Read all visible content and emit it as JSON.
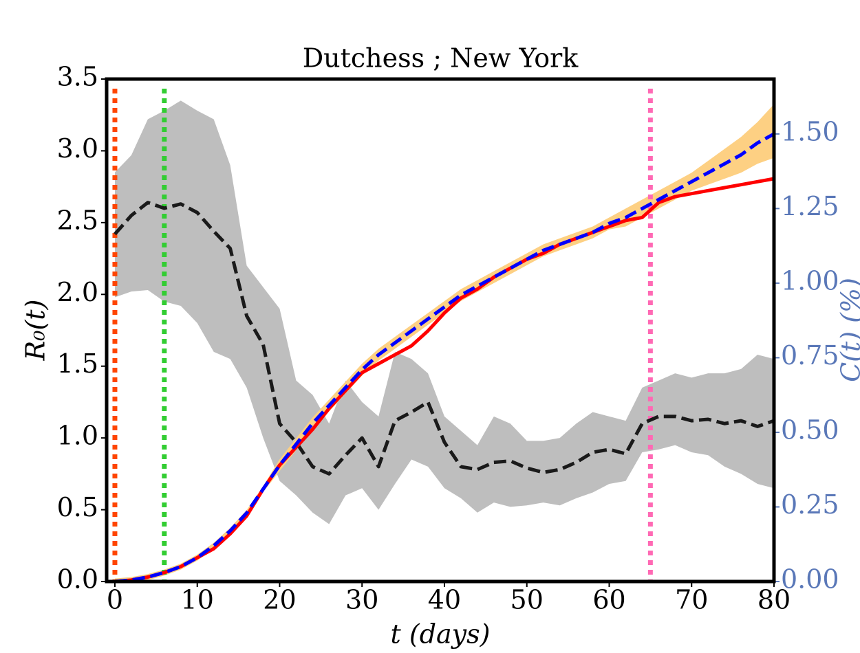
{
  "chart_data": {
    "type": "line",
    "title": "Dutchess ; New York",
    "xlabel": "t (days)",
    "ylabel": "R₀(t)",
    "y2label": "C(t) (%)",
    "y2color": "#5a78b8",
    "xlim": [
      -1,
      80
    ],
    "xticks": [
      0,
      10,
      20,
      30,
      40,
      50,
      60,
      70,
      80
    ],
    "ylim": [
      0,
      3.5
    ],
    "yticks": [
      {
        "value": 0,
        "label": "0.0"
      },
      0.5,
      {
        "value": 1,
        "label": "1.0"
      },
      1.5,
      {
        "value": 2,
        "label": "2.0"
      },
      2.5,
      {
        "value": 3,
        "label": "3.0"
      },
      3.5
    ],
    "y2lim": [
      0,
      1.684
    ],
    "y2ticks": [
      {
        "value": 0,
        "label": "0.00"
      },
      0.25,
      {
        "value": 0.5,
        "label": "0.50"
      },
      0.75,
      {
        "value": 1,
        "label": "1.00"
      },
      1.25,
      {
        "value": 1.5,
        "label": "1.50"
      }
    ],
    "x": [
      0,
      2,
      4,
      6,
      8,
      10,
      12,
      14,
      16,
      18,
      20,
      22,
      24,
      26,
      28,
      30,
      32,
      34,
      36,
      38,
      40,
      42,
      44,
      46,
      48,
      50,
      52,
      54,
      56,
      58,
      60,
      62,
      64,
      66,
      68,
      70,
      72,
      74,
      76,
      78,
      80
    ],
    "bands": [
      {
        "color": "#bebebe",
        "lower": [
          1.98,
          2.02,
          2.03,
          1.95,
          1.92,
          1.8,
          1.6,
          1.55,
          1.35,
          1.0,
          0.7,
          0.6,
          0.48,
          0.4,
          0.6,
          0.65,
          0.5,
          0.68,
          0.85,
          0.8,
          0.65,
          0.58,
          0.48,
          0.55,
          0.52,
          0.53,
          0.55,
          0.53,
          0.58,
          0.62,
          0.68,
          0.7,
          0.9,
          0.92,
          0.95,
          0.9,
          0.88,
          0.8,
          0.75,
          0.68,
          0.65
        ],
        "upper": [
          2.85,
          2.97,
          3.22,
          3.28,
          3.35,
          3.28,
          3.22,
          2.9,
          2.2,
          2.05,
          1.9,
          1.4,
          1.3,
          1.1,
          1.4,
          1.25,
          1.15,
          1.6,
          1.55,
          1.45,
          1.15,
          1.05,
          0.95,
          1.15,
          1.1,
          0.98,
          0.98,
          1.0,
          1.1,
          1.18,
          1.15,
          1.12,
          1.35,
          1.4,
          1.45,
          1.42,
          1.45,
          1.45,
          1.48,
          1.58,
          1.55
        ]
      },
      {
        "color": "#fdd083",
        "axis": "y2",
        "lower": [
          0,
          0,
          0.005,
          0.02,
          0.04,
          0.07,
          0.11,
          0.16,
          0.22,
          0.3,
          0.37,
          0.44,
          0.51,
          0.57,
          0.63,
          0.69,
          0.74,
          0.78,
          0.82,
          0.86,
          0.9,
          0.94,
          0.97,
          1.0,
          1.03,
          1.06,
          1.09,
          1.11,
          1.13,
          1.15,
          1.18,
          1.19,
          1.22,
          1.25,
          1.28,
          1.31,
          1.33,
          1.35,
          1.37,
          1.4,
          1.42
        ],
        "upper": [
          0.01,
          0.015,
          0.025,
          0.04,
          0.06,
          0.09,
          0.13,
          0.18,
          0.24,
          0.32,
          0.41,
          0.48,
          0.55,
          0.61,
          0.67,
          0.73,
          0.78,
          0.82,
          0.86,
          0.9,
          0.94,
          0.98,
          1.01,
          1.04,
          1.07,
          1.1,
          1.13,
          1.15,
          1.17,
          1.19,
          1.22,
          1.25,
          1.28,
          1.31,
          1.34,
          1.37,
          1.41,
          1.45,
          1.49,
          1.54,
          1.6
        ]
      }
    ],
    "series": [
      {
        "color": "#1a1a1a",
        "dashed": true,
        "values": [
          2.42,
          2.55,
          2.64,
          2.6,
          2.63,
          2.57,
          2.44,
          2.32,
          1.85,
          1.65,
          1.1,
          0.97,
          0.8,
          0.75,
          0.88,
          1.0,
          0.8,
          1.12,
          1.18,
          1.25,
          0.97,
          0.8,
          0.78,
          0.83,
          0.84,
          0.79,
          0.76,
          0.78,
          0.83,
          0.9,
          0.92,
          0.89,
          1.1,
          1.15,
          1.15,
          1.12,
          1.13,
          1.1,
          1.12,
          1.08,
          1.12
        ]
      },
      {
        "color": "#ff0000",
        "axis": "y2",
        "values": [
          0,
          0.005,
          0.015,
          0.03,
          0.05,
          0.08,
          0.11,
          0.16,
          0.22,
          0.31,
          0.39,
          0.45,
          0.51,
          0.58,
          0.64,
          0.7,
          0.73,
          0.76,
          0.79,
          0.84,
          0.9,
          0.95,
          0.98,
          1.02,
          1.05,
          1.08,
          1.1,
          1.13,
          1.15,
          1.17,
          1.19,
          1.21,
          1.22,
          1.27,
          1.29,
          1.3,
          1.31,
          1.32,
          1.33,
          1.34,
          1.35
        ]
      },
      {
        "color": "#0000ff",
        "axis": "y2",
        "dashed": true,
        "values": [
          0,
          0.005,
          0.015,
          0.03,
          0.05,
          0.08,
          0.12,
          0.17,
          0.23,
          0.31,
          0.39,
          0.46,
          0.53,
          0.59,
          0.65,
          0.71,
          0.76,
          0.8,
          0.84,
          0.88,
          0.92,
          0.96,
          0.99,
          1.02,
          1.05,
          1.08,
          1.11,
          1.13,
          1.15,
          1.17,
          1.2,
          1.22,
          1.25,
          1.28,
          1.31,
          1.34,
          1.37,
          1.4,
          1.43,
          1.47,
          1.5
        ]
      }
    ],
    "vlines": [
      {
        "x": 0,
        "color": "#ff4500"
      },
      {
        "x": 6,
        "color": "#32cd32"
      },
      {
        "x": 65,
        "color": "#ff69b4"
      }
    ]
  }
}
